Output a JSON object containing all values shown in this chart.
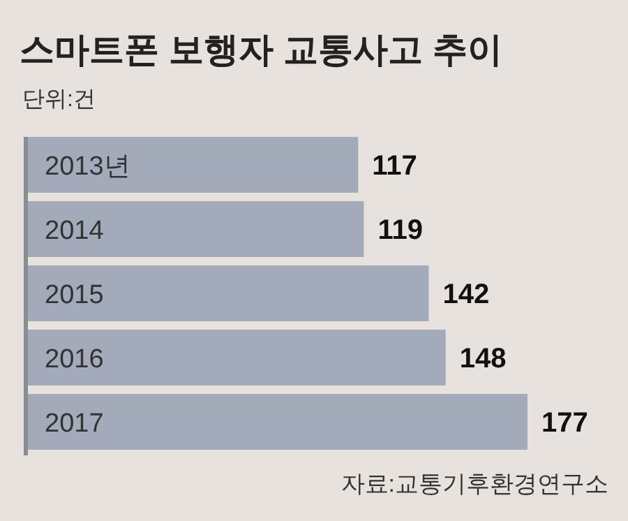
{
  "chart_data": {
    "type": "bar",
    "orientation": "horizontal",
    "title": "스마트폰 보행자 교통사고 추이",
    "subtitle": "단위:건",
    "categories": [
      "2013년",
      "2014",
      "2015",
      "2016",
      "2017"
    ],
    "values": [
      117,
      119,
      142,
      148,
      177
    ],
    "color": "#a3aab9",
    "data_labels": true,
    "annotations": [
      "자료:교통기후환경연구소"
    ]
  }
}
